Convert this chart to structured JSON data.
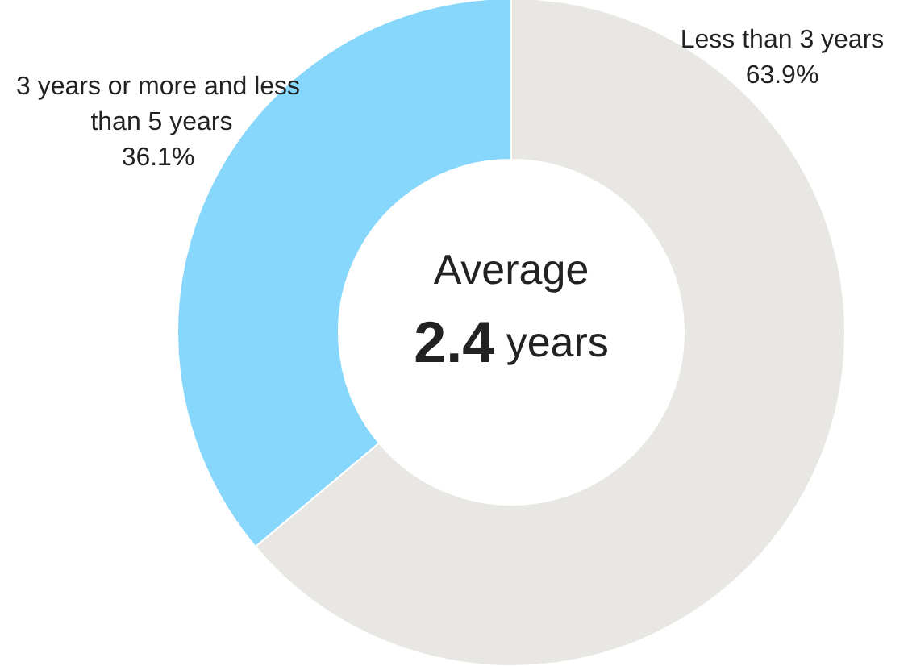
{
  "chart_data": {
    "type": "donut",
    "categories": [
      "Less than 3 years",
      "3 years or more and less than 5 years"
    ],
    "values": [
      63.9,
      36.1
    ],
    "value_labels": [
      "63.9%",
      "36.1%"
    ],
    "colors": [
      "#e8e7e3",
      "#87d7fd"
    ],
    "annotations": [
      "Average",
      "2.4 years"
    ],
    "legend": false
  }
}
